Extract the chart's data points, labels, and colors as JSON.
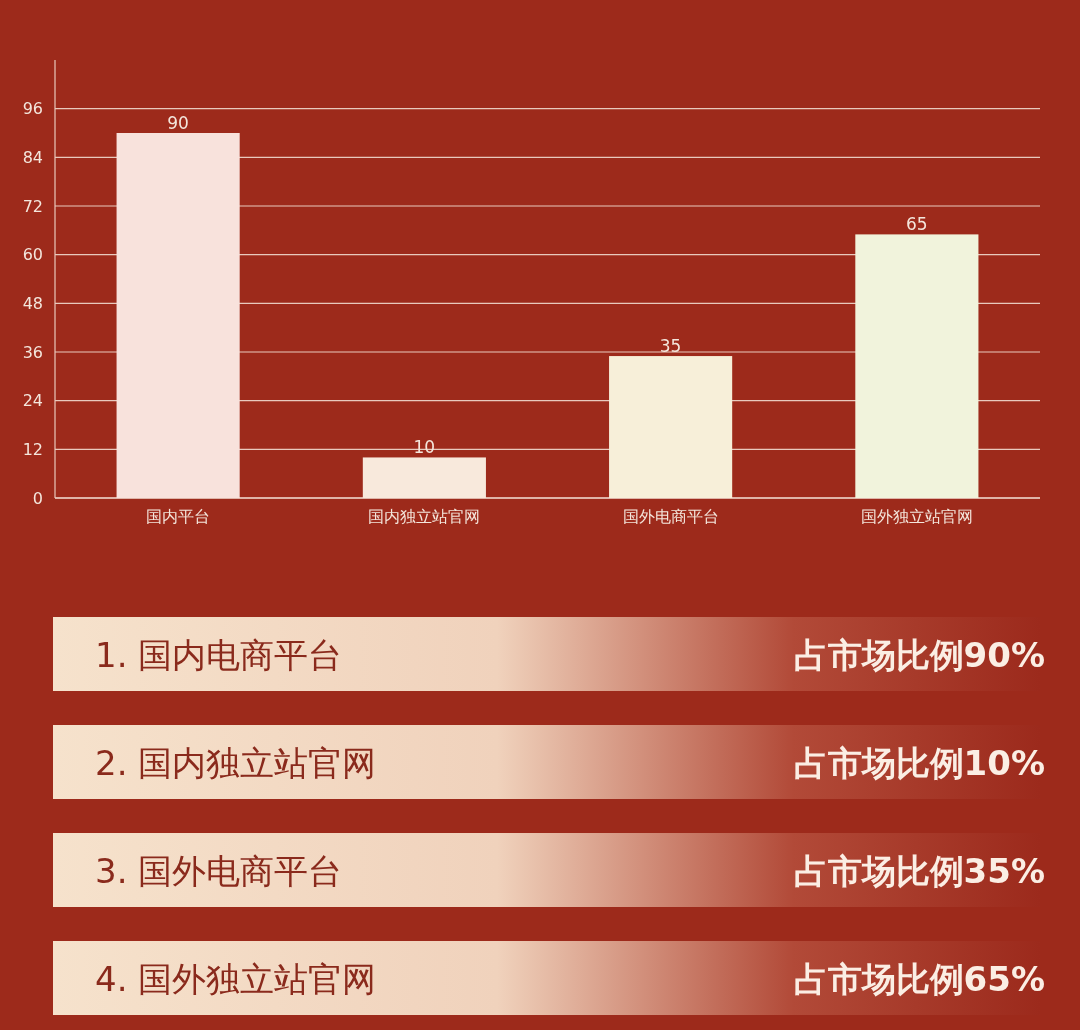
{
  "chart_data": {
    "type": "bar",
    "categories": [
      "国内平台",
      "国内独立站官网",
      "国外电商平台",
      "国外独立站官网"
    ],
    "values": [
      90,
      10,
      35,
      65
    ],
    "colors": [
      "#f8e2dc",
      "#f8e9dc",
      "#f7efd9",
      "#f1f3dc"
    ],
    "ylim": [
      0,
      108
    ],
    "yticks": [
      0,
      12,
      24,
      36,
      48,
      60,
      72,
      84,
      96
    ],
    "grid": "y",
    "data_labels": true,
    "annotations": [
      "1. 国内电商平台",
      "占市场比例90%",
      "2. 国内独立站官网",
      "占市场比例10%",
      "3. 国外电商平台",
      "占市场比例35%",
      "4. 国外独立站官网",
      "占市场比例65%"
    ]
  }
}
